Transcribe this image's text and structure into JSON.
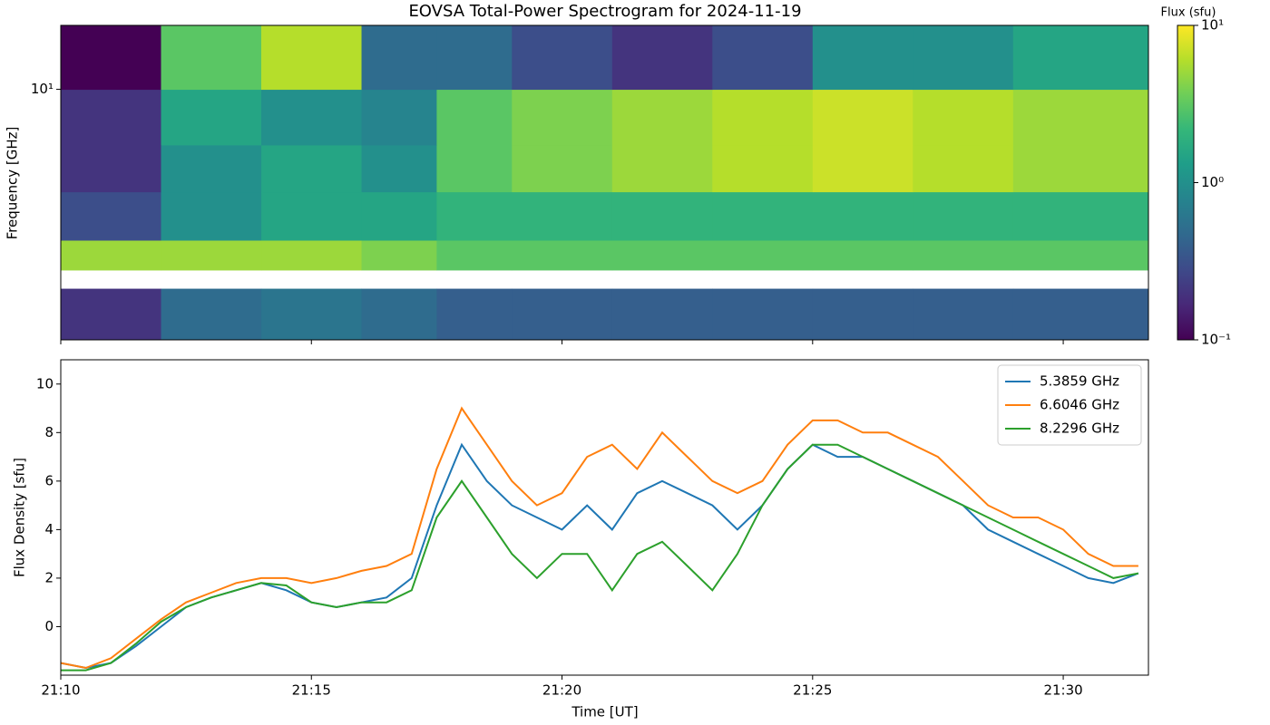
{
  "chart_data": [
    {
      "type": "heatmap",
      "title": "EOVSA Total-Power Spectrogram for 2024-11-19",
      "ylabel": "Frequency [GHz]",
      "x": [
        "21:10:00",
        "21:12:00",
        "21:14:00",
        "21:16:00",
        "21:17:30",
        "21:19:00",
        "21:21:00",
        "21:23:00",
        "21:25:00",
        "21:27:00",
        "21:29:00",
        "21:31:42"
      ],
      "y": [
        1,
        1.6,
        1.9,
        2.5,
        3.9,
        6,
        10,
        18
      ],
      "values": [
        [
          0.2,
          0.5,
          0.6,
          0.5,
          0.4,
          0.4,
          0.4,
          0.4,
          0.4,
          0.4,
          0.4
        ],
        [
          null,
          null,
          null,
          null,
          null,
          null,
          null,
          null,
          null,
          null,
          null
        ],
        [
          5,
          5,
          5,
          4,
          3,
          3,
          3,
          3,
          3,
          3,
          3
        ],
        [
          0.3,
          1,
          1.5,
          1.5,
          2,
          2,
          2,
          2,
          2,
          2,
          2
        ],
        [
          0.2,
          1,
          1.5,
          1,
          3,
          4,
          5,
          6,
          7,
          6,
          5
        ],
        [
          0.2,
          1.5,
          1,
          0.8,
          3,
          4,
          5,
          6,
          7,
          6,
          5
        ],
        [
          0.1,
          3,
          6,
          0.5,
          0.5,
          0.3,
          0.2,
          0.3,
          1,
          1,
          1.5
        ]
      ],
      "xlim": [
        "21:10:00",
        "21:31:42"
      ],
      "ylim": [
        1,
        18
      ],
      "yscale": "log",
      "yticks": [
        {
          "value": 10,
          "label": "10¹"
        }
      ],
      "colorbar": {
        "label": "Flux (sfu)",
        "colormap": "viridis",
        "scale": "log",
        "lim": [
          0.1,
          10
        ],
        "ticks": [
          {
            "value": 0.1,
            "label": "10⁻¹"
          },
          {
            "value": 1,
            "label": "10⁰"
          },
          {
            "value": 10,
            "label": "10¹"
          }
        ]
      }
    },
    {
      "type": "line",
      "xlabel": "Time [UT]",
      "ylabel": "Flux Density [sfu]",
      "x": [
        "21:10:00",
        "21:10:30",
        "21:11:00",
        "21:11:30",
        "21:12:00",
        "21:12:30",
        "21:13:00",
        "21:13:30",
        "21:14:00",
        "21:14:30",
        "21:15:00",
        "21:15:30",
        "21:16:00",
        "21:16:30",
        "21:17:00",
        "21:17:30",
        "21:18:00",
        "21:18:30",
        "21:19:00",
        "21:19:30",
        "21:20:00",
        "21:20:30",
        "21:21:00",
        "21:21:30",
        "21:22:00",
        "21:22:30",
        "21:23:00",
        "21:23:30",
        "21:24:00",
        "21:24:30",
        "21:25:00",
        "21:25:30",
        "21:26:00",
        "21:26:30",
        "21:27:00",
        "21:27:30",
        "21:28:00",
        "21:28:30",
        "21:29:00",
        "21:29:30",
        "21:30:00",
        "21:30:30",
        "21:31:00",
        "21:31:30"
      ],
      "series": [
        {
          "name": "5.3859 GHz",
          "color": "#1f77b4",
          "values": [
            -1.5,
            -1.7,
            -1.5,
            -0.8,
            0,
            0.8,
            1.2,
            1.5,
            1.8,
            1.5,
            1.0,
            0.8,
            1.0,
            1.2,
            2,
            5,
            7.5,
            6,
            5,
            4.5,
            4,
            5,
            4,
            5.5,
            6,
            5.5,
            5,
            4,
            5,
            6.5,
            7.5,
            7,
            7,
            6.5,
            6,
            5.5,
            5,
            4,
            3.5,
            3,
            2.5,
            2,
            1.8,
            2.2
          ]
        },
        {
          "name": "6.6046 GHz",
          "color": "#ff7f0e",
          "values": [
            -1.5,
            -1.7,
            -1.3,
            -0.5,
            0.3,
            1,
            1.4,
            1.8,
            2,
            2,
            1.8,
            2,
            2.3,
            2.5,
            3,
            6.5,
            9,
            7.5,
            6,
            5,
            5.5,
            7,
            7.5,
            6.5,
            8,
            7,
            6,
            5.5,
            6,
            7.5,
            8.5,
            8.5,
            8,
            8,
            7.5,
            7,
            6,
            5,
            4.5,
            4.5,
            4,
            3,
            2.5,
            2.5
          ]
        },
        {
          "name": "8.2296 GHz",
          "color": "#2ca02c",
          "values": [
            -1.8,
            -1.8,
            -1.5,
            -0.7,
            0.2,
            0.8,
            1.2,
            1.5,
            1.8,
            1.7,
            1.0,
            0.8,
            1.0,
            1.0,
            1.5,
            4.5,
            6,
            4.5,
            3,
            2,
            3,
            3,
            1.5,
            3,
            3.5,
            2.5,
            1.5,
            3,
            5,
            6.5,
            7.5,
            7.5,
            7,
            6.5,
            6,
            5.5,
            5,
            4.5,
            4,
            3.5,
            3,
            2.5,
            2,
            2.2
          ]
        }
      ],
      "xlim": [
        "21:10:00",
        "21:31:42"
      ],
      "xticks": [
        "21:10",
        "21:15",
        "21:20",
        "21:25",
        "21:30"
      ],
      "ylim": [
        -2,
        11
      ],
      "yticks": [
        0,
        2,
        4,
        6,
        8,
        10
      ],
      "legend": "upper right"
    }
  ]
}
